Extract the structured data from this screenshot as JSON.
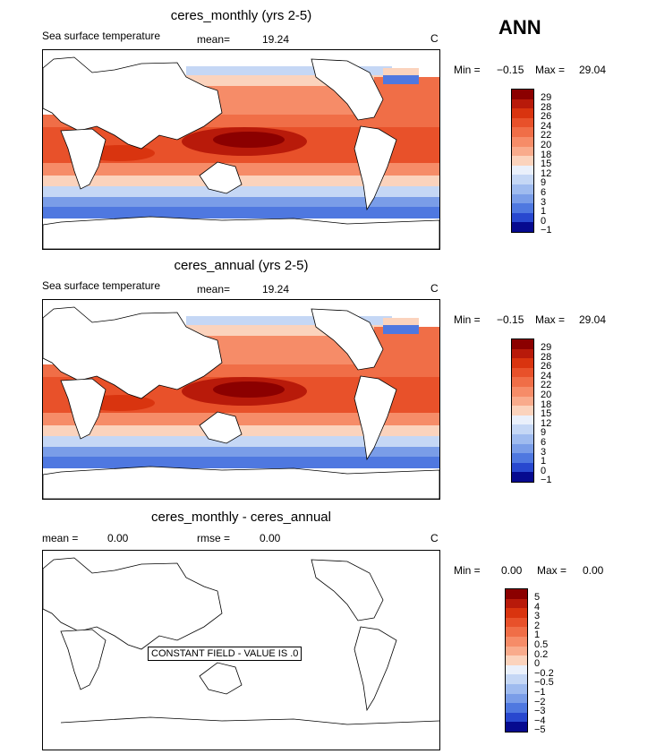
{
  "season": "ANN",
  "panels": [
    {
      "title": "ceres_monthly (yrs 2-5)",
      "variable": "Sea surface temperature",
      "mean_label": "mean=",
      "mean_value": "19.24",
      "units": "C",
      "min_label": "Min =",
      "min_value": "−0.15",
      "max_label": "Max =",
      "max_value": "29.04"
    },
    {
      "title": "ceres_annual (yrs 2-5)",
      "variable": "Sea surface temperature",
      "mean_label": "mean=",
      "mean_value": "19.24",
      "units": "C",
      "min_label": "Min =",
      "min_value": "−0.15",
      "max_label": "Max =",
      "max_value": "29.04"
    },
    {
      "title": "ceres_monthly - ceres_annual",
      "mean_label": "mean =",
      "mean_value": "0.00",
      "rmse_label": "rmse =",
      "rmse_value": "0.00",
      "units": "C",
      "min_label": "Min =",
      "min_value": "0.00",
      "max_label": "Max =",
      "max_value": "0.00",
      "constant_label": "CONSTANT FIELD - VALUE IS .0"
    }
  ],
  "chart_data": [
    {
      "type": "heatmap",
      "title": "ceres_monthly (yrs 2-5)",
      "subtitle": "Sea surface temperature",
      "units": "C",
      "mean": 19.24,
      "min": -0.15,
      "max": 29.04,
      "colorbar_levels": [
        "29",
        "28",
        "26",
        "24",
        "22",
        "20",
        "18",
        "15",
        "12",
        "9",
        "6",
        "3",
        "1",
        "0",
        "−1"
      ]
    },
    {
      "type": "heatmap",
      "title": "ceres_annual (yrs 2-5)",
      "subtitle": "Sea surface temperature",
      "units": "C",
      "mean": 19.24,
      "min": -0.15,
      "max": 29.04,
      "colorbar_levels": [
        "29",
        "28",
        "26",
        "24",
        "22",
        "20",
        "18",
        "15",
        "12",
        "9",
        "6",
        "3",
        "1",
        "0",
        "−1"
      ]
    },
    {
      "type": "heatmap",
      "title": "ceres_monthly - ceres_annual",
      "units": "C",
      "mean": 0.0,
      "rmse": 0.0,
      "min": 0.0,
      "max": 0.0,
      "colorbar_levels": [
        "5",
        "4",
        "3",
        "2",
        "1",
        "0.5",
        "0.2",
        "0",
        "−0.2",
        "−0.5",
        "−1",
        "−2",
        "−3",
        "−4",
        "−5"
      ]
    }
  ],
  "colorbar_colors": [
    "#8b0000",
    "#b81a0a",
    "#d9340f",
    "#e8512a",
    "#f06e47",
    "#f68c68",
    "#f9ab8c",
    "#fbd3bd",
    "#eaf0fb",
    "#c5d7f5",
    "#9fbbef",
    "#7a9de8",
    "#4f78e0",
    "#2848cf",
    "#060a8f"
  ]
}
